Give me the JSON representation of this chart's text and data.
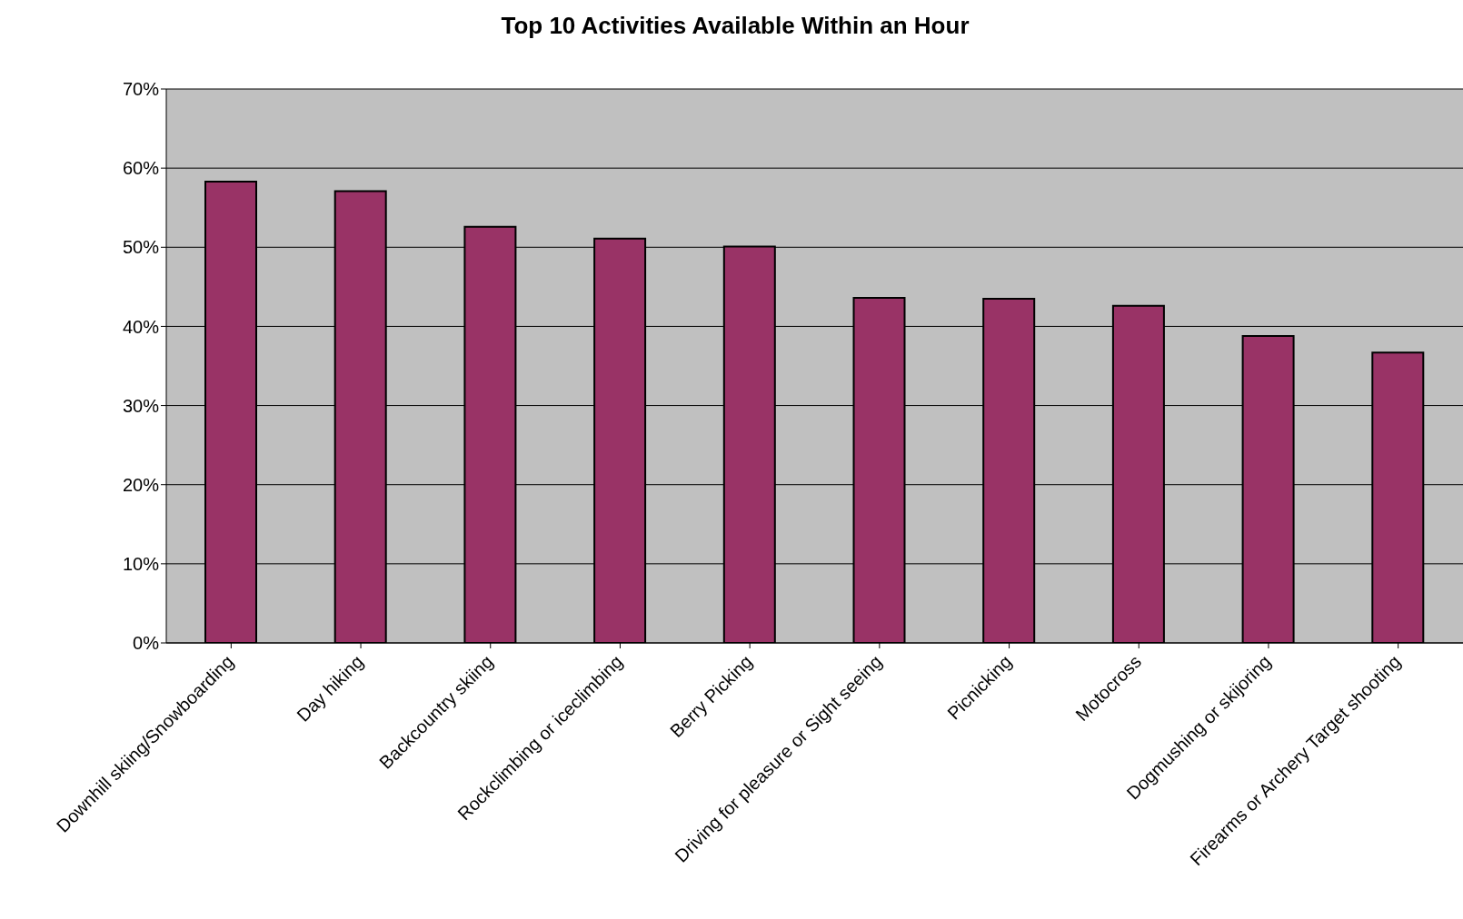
{
  "chart_data": {
    "type": "bar",
    "title": "Top 10 Activities Available Within an Hour",
    "categories": [
      "Downhill skiing/Snowboarding",
      "Day hiking",
      "Backcountry skiing",
      "Rockclimbing or iceclimbing",
      "Berry Picking",
      "Driving for pleasure or Sight seeing",
      "Picnicking",
      "Motocross",
      "Dogmushing or skijoring",
      "Firearms or Archery Target shooting"
    ],
    "values": [
      58.3,
      57.1,
      52.6,
      51.1,
      50.1,
      43.6,
      43.5,
      42.6,
      38.8,
      36.7
    ],
    "color": "#993366",
    "ylim": [
      0,
      70
    ],
    "yticks": [
      {
        "value": 0,
        "label": "0%"
      },
      {
        "value": 10,
        "label": "10%"
      },
      {
        "value": 20,
        "label": "20%"
      },
      {
        "value": 30,
        "label": "30%"
      },
      {
        "value": 40,
        "label": "40%"
      },
      {
        "value": 50,
        "label": "50%"
      },
      {
        "value": 60,
        "label": "60%"
      },
      {
        "value": 70,
        "label": "70%"
      }
    ],
    "grid": "y"
  }
}
